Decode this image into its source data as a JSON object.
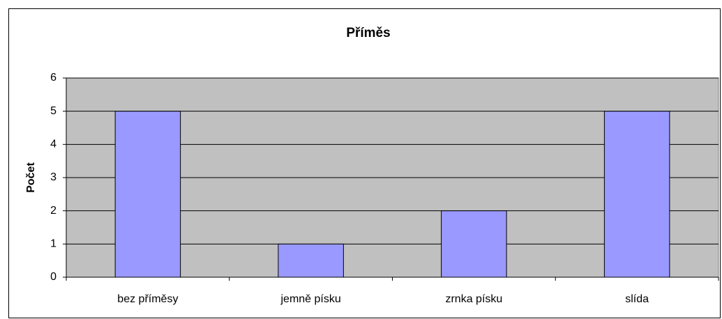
{
  "chart_data": {
    "type": "bar",
    "title": "Příměs",
    "y_label": "Počet",
    "categories": [
      "bez příměsy",
      "jemně písku",
      "zrnka písku",
      "slída"
    ],
    "values": [
      5,
      1,
      2,
      5
    ],
    "color": "#9999ff",
    "ylim": [
      0,
      6
    ],
    "yticks": [
      0,
      1,
      2,
      3,
      4,
      5,
      6
    ],
    "grid": true
  }
}
